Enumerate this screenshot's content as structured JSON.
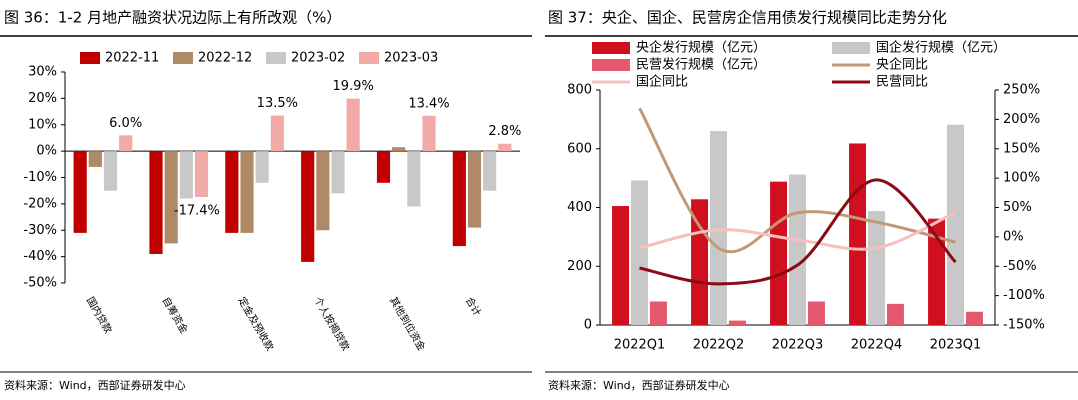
{
  "chart_data": [
    {
      "type": "bar",
      "title": "图 36：1-2 月地产融资状况边际上有所改观（%）",
      "source": "资料来源：Wind，西部证券研发中心",
      "categories": [
        "国内贷款",
        "自筹资金",
        "定金及预收款",
        "个人按揭贷款",
        "其他到位资金",
        "合计"
      ],
      "series": [
        {
          "name": "2022-11",
          "color": "#c00000",
          "values": [
            -31,
            -39,
            -31,
            -42,
            -12,
            -36
          ]
        },
        {
          "name": "2022-12",
          "color": "#b08a66",
          "values": [
            -6,
            -35,
            -31,
            -30,
            1.5,
            -29
          ]
        },
        {
          "name": "2023-02",
          "color": "#c8c8c8",
          "values": [
            -15,
            -18,
            -12,
            -16,
            -21,
            -15
          ]
        },
        {
          "name": "2023-03",
          "color": "#f2aaa8",
          "values": [
            6.0,
            -17.4,
            13.5,
            19.9,
            13.4,
            2.8
          ],
          "value_labels": [
            "6.0%",
            "-17.4%",
            "13.5%",
            "19.9%",
            "13.4%",
            "2.8%"
          ]
        }
      ],
      "ylim": [
        -50,
        30
      ],
      "yticks": [
        {
          "value": -50,
          "label": "-50%"
        },
        {
          "value": -40,
          "label": "-40%"
        },
        {
          "value": -30,
          "label": "-30%"
        },
        {
          "value": -20,
          "label": "-20%"
        },
        {
          "value": -10,
          "label": "-10%"
        },
        {
          "value": 0,
          "label": "0%"
        },
        {
          "value": 10,
          "label": "10%"
        },
        {
          "value": 20,
          "label": "20%"
        },
        {
          "value": 30,
          "label": "30%"
        }
      ]
    },
    {
      "type": "combo",
      "title": "图 37：央企、国企、民营房企信用债发行规模同比走势分化",
      "source": "资料来源：Wind，西部证券研发中心",
      "categories": [
        "2022Q1",
        "2022Q2",
        "2022Q3",
        "2022Q4",
        "2023Q1"
      ],
      "series": [
        {
          "name": "央企发行规模（亿元）",
          "type": "bar",
          "color": "#d0101e",
          "values": [
            405,
            428,
            488,
            618,
            362
          ]
        },
        {
          "name": "国企发行规模（亿元）",
          "type": "bar",
          "color": "#c8c8c8",
          "values": [
            492,
            660,
            512,
            388,
            682
          ]
        },
        {
          "name": "民营发行规模（亿元）",
          "type": "bar",
          "color": "#e35a6e",
          "values": [
            80,
            15,
            80,
            72,
            45
          ]
        },
        {
          "name": "央企同比",
          "type": "line",
          "axis": "y2",
          "color": "#c09a78",
          "values": [
            219,
            -19,
            41,
            25,
            -9
          ]
        },
        {
          "name": "国企同比",
          "type": "line",
          "axis": "y2",
          "color": "#f6c0bc",
          "values": [
            -19,
            12,
            -5,
            -19,
            42
          ]
        },
        {
          "name": "民营同比",
          "type": "line",
          "axis": "y2",
          "color": "#8b0a14",
          "values": [
            -53,
            -80,
            -48,
            97,
            -43
          ]
        }
      ],
      "smooth": true,
      "ylim": [
        0,
        800
      ],
      "yticks": [
        0,
        200,
        400,
        600,
        800
      ],
      "y2lim": [
        -150,
        250
      ],
      "y2ticks": [
        {
          "value": -150,
          "label": "-150%"
        },
        {
          "value": -100,
          "label": "-100%"
        },
        {
          "value": -50,
          "label": "-50%"
        },
        {
          "value": 0,
          "label": "0%"
        },
        {
          "value": 50,
          "label": "50%"
        },
        {
          "value": 100,
          "label": "100%"
        },
        {
          "value": 150,
          "label": "150%"
        },
        {
          "value": 200,
          "label": "200%"
        },
        {
          "value": 250,
          "label": "250%"
        }
      ]
    }
  ]
}
